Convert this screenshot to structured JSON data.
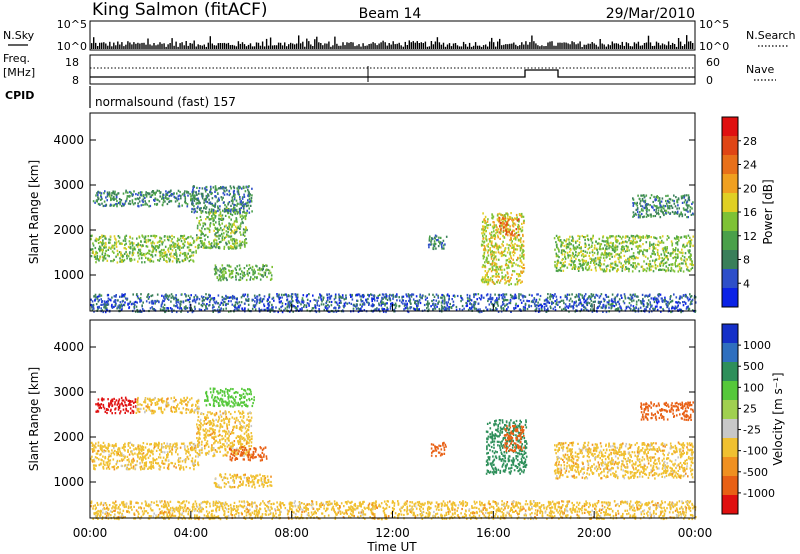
{
  "header": {
    "station": "King Salmon (fitACF)",
    "beam": "Beam 14",
    "date": "29/Mar/2010"
  },
  "summary": {
    "nsky_label": "N.Sky",
    "nsearch_label": "N.Search",
    "count_ticks_left": [
      "10^5",
      "10^0"
    ],
    "count_ticks_right": [
      "10^5",
      "10^0"
    ],
    "freq_label": "Freq.",
    "freq_unit": "[MHz]",
    "freq_ticks": [
      "18",
      "8"
    ],
    "nave_label": "Nave",
    "nave_ticks": [
      "60",
      "0"
    ],
    "cpid_label": "CPID",
    "cpid_text": "normalsound (fast) 157"
  },
  "time_axis": {
    "label": "Time UT",
    "ticks": [
      "00:00",
      "04:00",
      "08:00",
      "12:00",
      "16:00",
      "20:00",
      "00:00"
    ]
  },
  "chart_data": [
    {
      "type": "heatmap",
      "title": "",
      "xlabel": "",
      "ylabel": "Slant Range [km]",
      "x_range_hours": [
        0,
        24
      ],
      "ylim": [
        200,
        4600
      ],
      "yticks": [
        "1000",
        "2000",
        "3000",
        "4000"
      ],
      "colorbar": {
        "label": "Power [dB]",
        "ticks": [
          "4",
          "8",
          "12",
          "16",
          "20",
          "24",
          "28"
        ],
        "colors": [
          "#0b22e6",
          "#2e4fc9",
          "#3a7f5a",
          "#4aa04a",
          "#7ec235",
          "#e0cf24",
          "#f0a020",
          "#e8701a",
          "#e04515",
          "#e01010"
        ]
      },
      "regions": [
        {
          "t": [
            0.0,
            4.2
          ],
          "range": [
            1300,
            1900
          ],
          "value": 14
        },
        {
          "t": [
            4.2,
            6.2
          ],
          "range": [
            1600,
            2500
          ],
          "value": 13
        },
        {
          "t": [
            0.1,
            4.3
          ],
          "range": [
            2550,
            2900
          ],
          "value": 9
        },
        {
          "t": [
            4.0,
            6.4
          ],
          "range": [
            2400,
            3000
          ],
          "value": 8
        },
        {
          "t": [
            4.9,
            7.2
          ],
          "range": [
            900,
            1250
          ],
          "value": 12
        },
        {
          "t": [
            15.5,
            17.2
          ],
          "range": [
            800,
            2400
          ],
          "value": 17
        },
        {
          "t": [
            16.2,
            17.0
          ],
          "range": [
            1900,
            2300
          ],
          "value": 24
        },
        {
          "t": [
            18.4,
            23.9
          ],
          "range": [
            1100,
            1900
          ],
          "value": 14
        },
        {
          "t": [
            21.5,
            23.9
          ],
          "range": [
            2300,
            2800
          ],
          "value": 9
        },
        {
          "t": [
            13.4,
            14.2
          ],
          "range": [
            1600,
            1900
          ],
          "value": 8
        },
        {
          "t": [
            0.0,
            24.0
          ],
          "range": [
            200,
            600
          ],
          "value": 6
        }
      ]
    },
    {
      "type": "heatmap",
      "title": "",
      "xlabel": "Time UT",
      "ylabel": "Slant Range [km]",
      "x_range_hours": [
        0,
        24
      ],
      "ylim": [
        200,
        4600
      ],
      "yticks": [
        "1000",
        "2000",
        "3000",
        "4000"
      ],
      "colorbar": {
        "label": "Velocity [m s⁻¹]",
        "ticks": [
          "1000",
          "500",
          "100",
          "25",
          "-25",
          "-100",
          "-500",
          "-1000"
        ],
        "colors": [
          "#1530c8",
          "#2f6fbf",
          "#2e8f5a",
          "#55c83a",
          "#a0d050",
          "#c8c8c8",
          "#f0c030",
          "#f09020",
          "#e86015",
          "#e01010"
        ]
      },
      "regions": [
        {
          "t": [
            0.0,
            4.3
          ],
          "range": [
            1300,
            1900
          ],
          "value": 0
        },
        {
          "t": [
            4.2,
            6.4
          ],
          "range": [
            1600,
            2600
          ],
          "value": 0
        },
        {
          "t": [
            0.2,
            1.8
          ],
          "range": [
            2550,
            2900
          ],
          "value": -700
        },
        {
          "t": [
            1.8,
            4.3
          ],
          "range": [
            2550,
            2900
          ],
          "value": 0
        },
        {
          "t": [
            4.5,
            6.5
          ],
          "range": [
            2700,
            3100
          ],
          "value": 200
        },
        {
          "t": [
            5.5,
            7.0
          ],
          "range": [
            1500,
            1800
          ],
          "value": -150
        },
        {
          "t": [
            4.9,
            7.2
          ],
          "range": [
            900,
            1200
          ],
          "value": 0
        },
        {
          "t": [
            15.7,
            17.3
          ],
          "range": [
            1200,
            2400
          ],
          "value": 300
        },
        {
          "t": [
            16.4,
            17.2
          ],
          "range": [
            1700,
            2300
          ],
          "value": -300
        },
        {
          "t": [
            18.4,
            23.9
          ],
          "range": [
            1100,
            1900
          ],
          "value": 0
        },
        {
          "t": [
            21.8,
            23.9
          ],
          "range": [
            2400,
            2800
          ],
          "value": -300
        },
        {
          "t": [
            13.5,
            14.1
          ],
          "range": [
            1600,
            1900
          ],
          "value": -150
        },
        {
          "t": [
            0.0,
            24.0
          ],
          "range": [
            200,
            600
          ],
          "value": 0
        }
      ]
    }
  ]
}
